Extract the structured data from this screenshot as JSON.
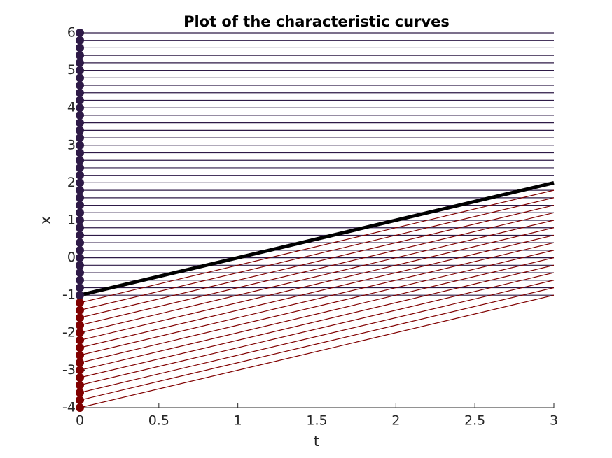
{
  "chart_data": {
    "type": "characteristics",
    "title": "Plot of the characteristic curves",
    "xlabel": "t",
    "ylabel": "x",
    "xlim": [
      0,
      3
    ],
    "ylim": [
      -4,
      6
    ],
    "xticks": [
      0,
      0.5,
      1,
      1.5,
      2,
      2.5,
      3
    ],
    "yticks": [
      -4,
      -3,
      -2,
      -1,
      0,
      1,
      2,
      3,
      4,
      5,
      6
    ],
    "series": [
      {
        "color": "#2e1a47",
        "slope": 0,
        "values": [
          -1,
          -0.8,
          -0.6,
          -0.4,
          -0.2,
          0,
          0.2,
          0.4,
          0.6,
          0.8,
          1,
          1.2,
          1.4,
          1.6,
          1.8,
          2,
          2.2,
          2.4,
          2.6,
          2.8,
          3,
          3.2,
          3.4,
          3.6,
          3.8,
          4,
          4.2,
          4.4,
          4.6,
          4.8,
          5,
          5.2,
          5.4,
          5.6,
          5.8,
          6
        ]
      },
      {
        "color": "#800000",
        "slope": 1,
        "values": [
          -4,
          -3.8,
          -3.6,
          -3.4,
          -3.2,
          -3,
          -2.8,
          -2.6,
          -2.4,
          -2.2,
          -2,
          -1.8,
          -1.6,
          -1.4,
          -1.2
        ]
      }
    ],
    "shock": {
      "color": "#000000",
      "x": [
        0,
        3
      ],
      "y": [
        -1,
        2
      ]
    }
  }
}
